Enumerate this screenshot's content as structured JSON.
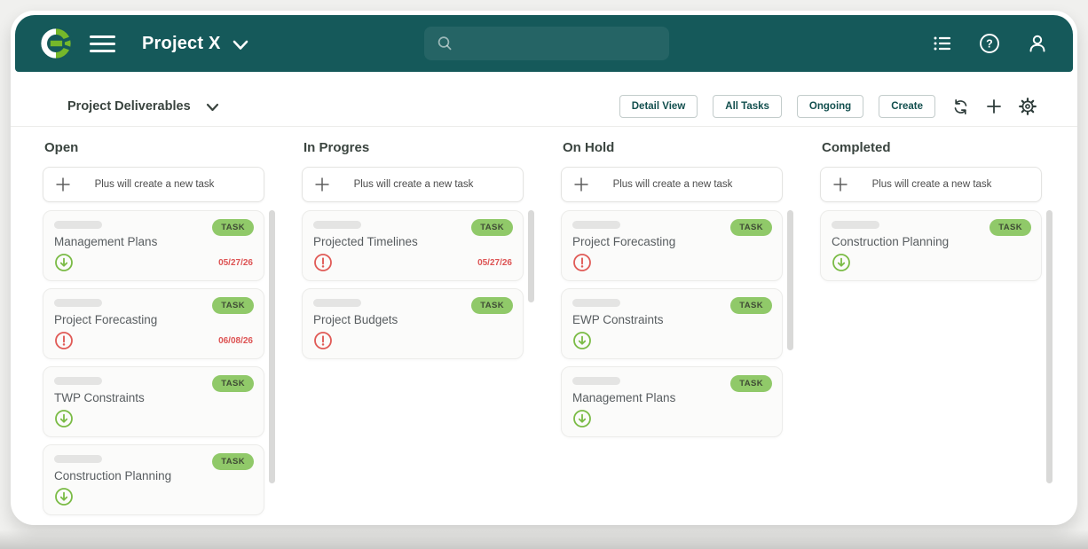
{
  "header": {
    "app_title": "Project X",
    "search": {
      "value": "",
      "placeholder": ""
    },
    "icons": [
      "logo",
      "hamburger-icon",
      "chevron-down-icon",
      "search-icon",
      "list-view-icon",
      "help-icon",
      "profile-icon"
    ]
  },
  "toolbar": {
    "board_title": "Project Deliverables",
    "buttons": [
      "Detail View",
      "All Tasks",
      "Ongoing",
      "Create"
    ],
    "icons": [
      "refresh-icon",
      "plus-icon",
      "gear-icon"
    ]
  },
  "board": {
    "add_task_label": "Plus will create a new task",
    "task_badge": "TASK",
    "columns": [
      {
        "title": "Open",
        "scrollbar_height": 308,
        "cards": [
          {
            "title": "Management Plans",
            "status": "low",
            "date": "05/27/26"
          },
          {
            "title": "Project Forecasting",
            "status": "alert",
            "date": "06/08/26"
          },
          {
            "title": "TWP Constraints",
            "status": "low",
            "date": ""
          },
          {
            "title": "Construction Planning",
            "status": "low",
            "date": ""
          }
        ]
      },
      {
        "title": "In Progres",
        "scrollbar_height": 104,
        "cards": [
          {
            "title": "Projected Timelines",
            "status": "alert",
            "date": "05/27/26"
          },
          {
            "title": "Project Budgets",
            "status": "alert",
            "date": ""
          }
        ]
      },
      {
        "title": "On Hold",
        "scrollbar_height": 158,
        "cards": [
          {
            "title": "Project Forecasting",
            "status": "alert",
            "date": ""
          },
          {
            "title": "EWP Constraints",
            "status": "low",
            "date": ""
          },
          {
            "title": "Management Plans",
            "status": "low",
            "date": ""
          }
        ]
      },
      {
        "title": "Completed",
        "scrollbar_height": 308,
        "cards": [
          {
            "title": "Construction Planning",
            "status": "low",
            "date": ""
          }
        ]
      }
    ]
  },
  "colors": {
    "header_teal": "#15595a",
    "logo_green": "#76b82a",
    "badge_green": "#90c969",
    "badge_text": "#3f4b35",
    "low_green": "#7abb45",
    "alert_red": "#e05a56",
    "date_red": "#dd5353"
  }
}
